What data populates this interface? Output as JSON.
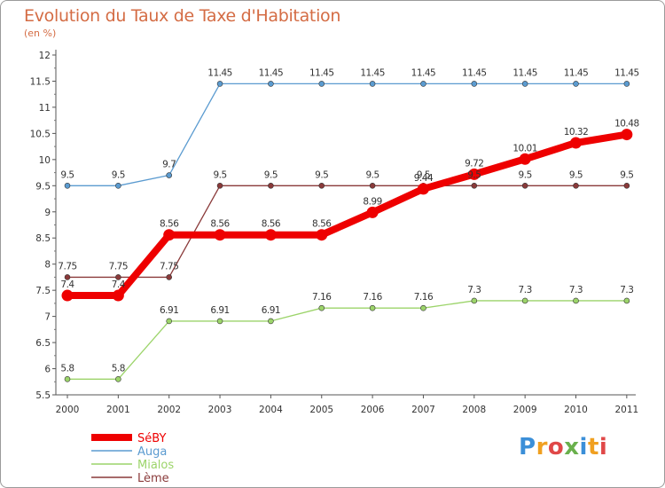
{
  "page": {
    "title": "Evolution du Taux de Taxe d'Habitation",
    "subtitle": "(en %)",
    "brand": "Proxiti",
    "brand_colors": [
      "#3b8fd8",
      "#f0a020",
      "#e04848",
      "#6ab04c"
    ]
  },
  "chart_data": {
    "type": "line",
    "title": "Evolution du Taux de Taxe d'Habitation",
    "subtitle": "(en %)",
    "xlabel": "",
    "ylabel": "",
    "x": [
      "2000",
      "2001",
      "2002",
      "2003",
      "2004",
      "2005",
      "2006",
      "2007",
      "2008",
      "2009",
      "2010",
      "2011"
    ],
    "ylim": [
      5.5,
      12
    ],
    "y_ticks": [
      "5.5",
      "6",
      "6.5",
      "7",
      "7.5",
      "8",
      "8.5",
      "9",
      "9.5",
      "10",
      "10.5",
      "11",
      "11.5",
      "12"
    ],
    "grid": false,
    "legend_position": "bottom-left",
    "series": [
      {
        "name": "SéBY",
        "color": "#ee0000",
        "highlight": true,
        "values": [
          7.4,
          7.4,
          8.56,
          8.56,
          8.56,
          8.56,
          8.99,
          9.44,
          9.72,
          10.01,
          10.32,
          10.48
        ],
        "labels": [
          "7.4",
          "7.4",
          "8.56",
          "8.56",
          "8.56",
          "8.56",
          "8.99",
          "9.44",
          "9.72",
          "10.01",
          "10.32",
          "10.48"
        ]
      },
      {
        "name": "Auga",
        "color": "#5b9bd0",
        "highlight": false,
        "values": [
          9.5,
          9.5,
          9.7,
          11.45,
          11.45,
          11.45,
          11.45,
          11.45,
          11.45,
          11.45,
          11.45,
          11.45
        ],
        "labels": [
          "9.5",
          "9.5",
          "9.7",
          "11.45",
          "11.45",
          "11.45",
          "11.45",
          "11.45",
          "11.45",
          "11.45",
          "11.45",
          "11.45"
        ]
      },
      {
        "name": "Mialos",
        "color": "#9cd46a",
        "highlight": false,
        "values": [
          5.8,
          5.8,
          6.91,
          6.91,
          6.91,
          7.16,
          7.16,
          7.16,
          7.3,
          7.3,
          7.3,
          7.3
        ],
        "labels": [
          "5.8",
          "5.8",
          "6.91",
          "6.91",
          "6.91",
          "7.16",
          "7.16",
          "7.16",
          "7.3",
          "7.3",
          "7.3",
          "7.3"
        ]
      },
      {
        "name": "Lème",
        "color": "#8a3a3a",
        "highlight": false,
        "values": [
          7.75,
          7.75,
          7.75,
          9.5,
          9.5,
          9.5,
          9.5,
          9.5,
          9.5,
          9.5,
          9.5,
          9.5
        ],
        "labels": [
          "7.75",
          "7.75",
          "7.75",
          "9.5",
          "9.5",
          "9.5",
          "9.5",
          "9.5",
          "9.5",
          "9.5",
          "9.5",
          "9.5"
        ]
      }
    ]
  }
}
